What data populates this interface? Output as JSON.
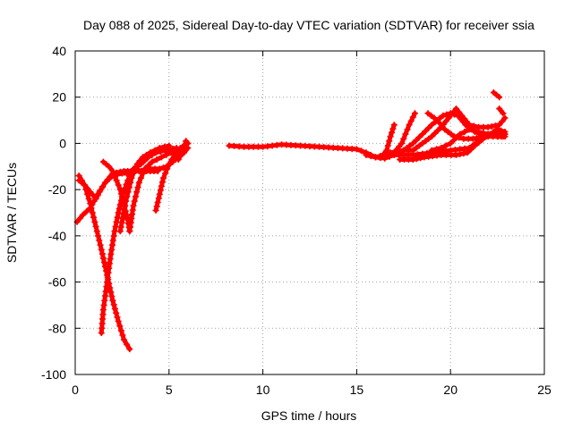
{
  "chart_data": {
    "type": "scatter",
    "title": "Day 088 of 2025, Sidereal Day-to-day VTEC variation (SDTVAR) for receiver ssia",
    "xlabel": "GPS time / hours",
    "ylabel": "SDTVAR / TECUs",
    "xlim": [
      0,
      25
    ],
    "ylim": [
      -100,
      40
    ],
    "xticks": [
      "0",
      "5",
      "10",
      "15",
      "20",
      "25"
    ],
    "yticks": [
      "40",
      "20",
      "0",
      "-20",
      "-40",
      "-60",
      "-80",
      "-100"
    ],
    "grid": true,
    "marker": "plus",
    "color": "#ff0000",
    "series": [
      {
        "points": [
          [
            0.2,
            -16
          ],
          [
            0.5,
            -18
          ],
          [
            0.8,
            -21
          ],
          [
            1.1,
            -24
          ],
          [
            1.3,
            -21
          ],
          [
            1.6,
            -17
          ],
          [
            2.0,
            -14
          ],
          [
            2.5,
            -13
          ],
          [
            3.0,
            -13
          ]
        ]
      },
      {
        "points": [
          [
            0.1,
            -34
          ],
          [
            0.4,
            -31
          ],
          [
            0.8,
            -28
          ],
          [
            1.2,
            -22
          ],
          [
            1.6,
            -17
          ],
          [
            2.0,
            -13
          ],
          [
            2.6,
            -12
          ],
          [
            3.2,
            -12
          ],
          [
            3.8,
            -12
          ],
          [
            4.4,
            -12
          ]
        ]
      },
      {
        "points": [
          [
            0.2,
            -14
          ],
          [
            0.5,
            -18
          ],
          [
            0.8,
            -26
          ],
          [
            1.1,
            -36
          ],
          [
            1.4,
            -46
          ],
          [
            1.7,
            -57
          ],
          [
            2.0,
            -68
          ],
          [
            2.3,
            -77
          ],
          [
            2.6,
            -85
          ],
          [
            2.9,
            -89
          ]
        ]
      },
      {
        "points": [
          [
            1.4,
            -82
          ],
          [
            1.5,
            -72
          ],
          [
            1.7,
            -60
          ],
          [
            1.9,
            -48
          ],
          [
            2.1,
            -38
          ],
          [
            2.3,
            -30
          ],
          [
            2.5,
            -23
          ],
          [
            2.8,
            -16
          ],
          [
            3.1,
            -11
          ],
          [
            3.5,
            -9
          ],
          [
            3.9,
            -6
          ],
          [
            4.3,
            -4
          ],
          [
            4.8,
            -3
          ],
          [
            5.4,
            -2
          ]
        ]
      },
      {
        "points": [
          [
            1.5,
            -8
          ],
          [
            1.8,
            -10
          ],
          [
            2.0,
            -12
          ],
          [
            2.4,
            -20
          ],
          [
            2.8,
            -33
          ],
          [
            2.9,
            -38
          ]
        ]
      },
      {
        "points": [
          [
            2.4,
            -38
          ],
          [
            2.7,
            -25
          ],
          [
            3.0,
            -15
          ],
          [
            3.3,
            -9
          ],
          [
            3.6,
            -6
          ],
          [
            4.0,
            -4
          ],
          [
            4.5,
            -2
          ],
          [
            5.0,
            -1
          ]
        ]
      },
      {
        "points": [
          [
            2.9,
            -38
          ],
          [
            3.1,
            -27
          ],
          [
            3.4,
            -17
          ],
          [
            3.7,
            -11
          ],
          [
            4.1,
            -8
          ],
          [
            4.6,
            -6
          ],
          [
            5.1,
            -4
          ],
          [
            5.6,
            -2
          ],
          [
            6.0,
            0
          ]
        ]
      },
      {
        "points": [
          [
            4.3,
            -29
          ],
          [
            4.5,
            -22
          ],
          [
            4.7,
            -15
          ],
          [
            5.0,
            -9
          ],
          [
            5.3,
            -5
          ],
          [
            5.7,
            -2
          ],
          [
            6.0,
            0
          ]
        ]
      },
      {
        "points": [
          [
            3.5,
            -12
          ],
          [
            4.0,
            -11
          ],
          [
            4.5,
            -11
          ],
          [
            4.9,
            -10
          ],
          [
            5.2,
            -8
          ],
          [
            5.5,
            -6
          ],
          [
            5.8,
            -4
          ],
          [
            6.0,
            -2
          ]
        ]
      },
      {
        "points": [
          [
            5.5,
            -7
          ],
          [
            5.7,
            -4
          ],
          [
            5.8,
            -2
          ],
          [
            5.9,
            1
          ]
        ]
      },
      {
        "points": [
          [
            8.2,
            -1
          ],
          [
            9.0,
            -1.5
          ],
          [
            10.0,
            -1.5
          ],
          [
            11.0,
            -0.5
          ],
          [
            12.0,
            -1
          ],
          [
            13.0,
            -1.5
          ],
          [
            14.0,
            -2
          ],
          [
            15.0,
            -2.5
          ],
          [
            15.5,
            -4
          ],
          [
            16.0,
            -6
          ],
          [
            16.5,
            -6.5
          ],
          [
            17.0,
            -5
          ]
        ]
      },
      {
        "points": [
          [
            15.5,
            -5
          ],
          [
            16.0,
            -6
          ],
          [
            16.3,
            -6
          ],
          [
            16.6,
            -3
          ],
          [
            16.8,
            3
          ],
          [
            17.0,
            8
          ]
        ]
      },
      {
        "points": [
          [
            16.0,
            -6
          ],
          [
            16.5,
            -5
          ],
          [
            17.0,
            -4
          ],
          [
            17.4,
            0
          ],
          [
            17.8,
            8
          ],
          [
            18.1,
            13
          ]
        ]
      },
      {
        "points": [
          [
            16.5,
            -5
          ],
          [
            17.0,
            -4
          ],
          [
            17.5,
            -3
          ],
          [
            18.0,
            0
          ],
          [
            18.5,
            4
          ],
          [
            19.0,
            8
          ],
          [
            19.6,
            12
          ],
          [
            20.0,
            13
          ],
          [
            20.4,
            12
          ],
          [
            20.8,
            8
          ],
          [
            21.3,
            5
          ],
          [
            22.0,
            3
          ],
          [
            22.8,
            3
          ]
        ]
      },
      {
        "points": [
          [
            16.8,
            -4
          ],
          [
            17.5,
            -3
          ],
          [
            18.0,
            -3
          ],
          [
            18.5,
            0
          ],
          [
            19.0,
            3
          ],
          [
            19.5,
            7
          ],
          [
            19.9,
            11
          ],
          [
            20.3,
            15
          ],
          [
            20.6,
            12
          ],
          [
            21.0,
            8
          ],
          [
            21.5,
            7
          ],
          [
            22.0,
            7
          ],
          [
            22.6,
            8
          ],
          [
            22.9,
            11
          ]
        ]
      },
      {
        "points": [
          [
            17.0,
            -5
          ],
          [
            18.0,
            -5
          ],
          [
            19.0,
            -4
          ],
          [
            20.0,
            -3
          ],
          [
            21.0,
            -2
          ],
          [
            21.5,
            1
          ],
          [
            22.0,
            4
          ],
          [
            22.6,
            4
          ],
          [
            22.9,
            4
          ]
        ]
      },
      {
        "points": [
          [
            17.3,
            -7
          ],
          [
            18.0,
            -7
          ],
          [
            18.6,
            -6
          ],
          [
            19.5,
            -5
          ],
          [
            20.3,
            -5
          ],
          [
            20.9,
            -4
          ],
          [
            21.3,
            -1
          ],
          [
            21.9,
            3
          ],
          [
            22.5,
            6
          ],
          [
            22.9,
            5
          ]
        ]
      },
      {
        "points": [
          [
            19.0,
            -3
          ],
          [
            19.5,
            -2
          ],
          [
            20.0,
            0
          ],
          [
            20.5,
            4
          ],
          [
            21.0,
            6
          ],
          [
            21.5,
            5
          ],
          [
            22.0,
            4
          ],
          [
            22.5,
            3
          ],
          [
            22.9,
            3
          ]
        ]
      },
      {
        "points": [
          [
            18.8,
            13
          ],
          [
            19.3,
            10
          ],
          [
            19.7,
            6
          ],
          [
            20.2,
            3
          ],
          [
            20.7,
            2
          ],
          [
            21.2,
            2
          ],
          [
            21.8,
            3
          ],
          [
            22.4,
            4
          ],
          [
            22.9,
            4
          ]
        ]
      },
      {
        "points": [
          [
            22.6,
            15
          ],
          [
            22.8,
            13
          ]
        ]
      },
      {
        "points": [
          [
            22.3,
            22
          ],
          [
            22.6,
            20
          ]
        ]
      }
    ]
  }
}
